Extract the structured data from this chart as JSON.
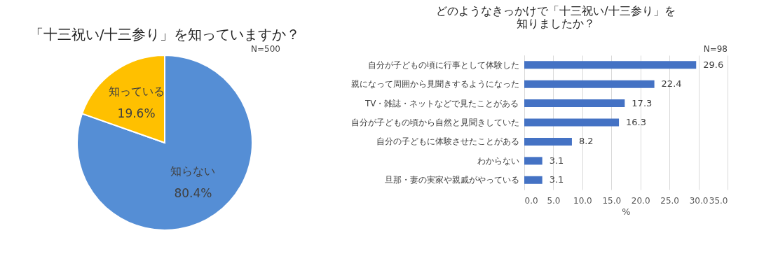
{
  "chart_data": [
    {
      "type": "pie",
      "title": "「十三祝い/十三参り」を知っていますか？",
      "annotations": [
        "N=500"
      ],
      "categories": [
        "知らない",
        "知っている"
      ],
      "values": [
        80.4,
        19.6
      ],
      "colors": [
        "#558ed5",
        "#ffc000"
      ],
      "value_labels": [
        "80.4%",
        "19.6%"
      ]
    },
    {
      "type": "bar",
      "orientation": "horizontal",
      "title": "どのようなきっかけで「十三祝い/十三参り」を知りましたか？",
      "annotations": [
        "N=98"
      ],
      "categories": [
        "自分が子どもの頃に行事として体験した",
        "親になって周囲から見聞きするようになった",
        "TV・雑誌・ネットなどで見たことがある",
        "自分が子どもの頃から自然と見聞きしていた",
        "自分の子どもに体験させたことがある",
        "わからない",
        "旦那・妻の実家や親戚がやっている"
      ],
      "values": [
        29.6,
        22.4,
        17.3,
        16.3,
        8.2,
        3.1,
        3.1
      ],
      "color": "#4472c4",
      "xlabel": "%",
      "xlim": [
        0,
        35
      ],
      "xticks": [
        {
          "value": 0,
          "label": "0.0"
        },
        {
          "value": 5,
          "label": "5.0"
        },
        {
          "value": 10,
          "label": "10.0"
        },
        {
          "value": 15,
          "label": "15.0"
        },
        {
          "value": 20,
          "label": "20.0"
        },
        {
          "value": 25,
          "label": "25.0"
        },
        {
          "value": 30,
          "label": "30.0"
        },
        {
          "value": 35,
          "label": "35.0"
        }
      ],
      "grid": "x",
      "data_labels": true
    }
  ]
}
